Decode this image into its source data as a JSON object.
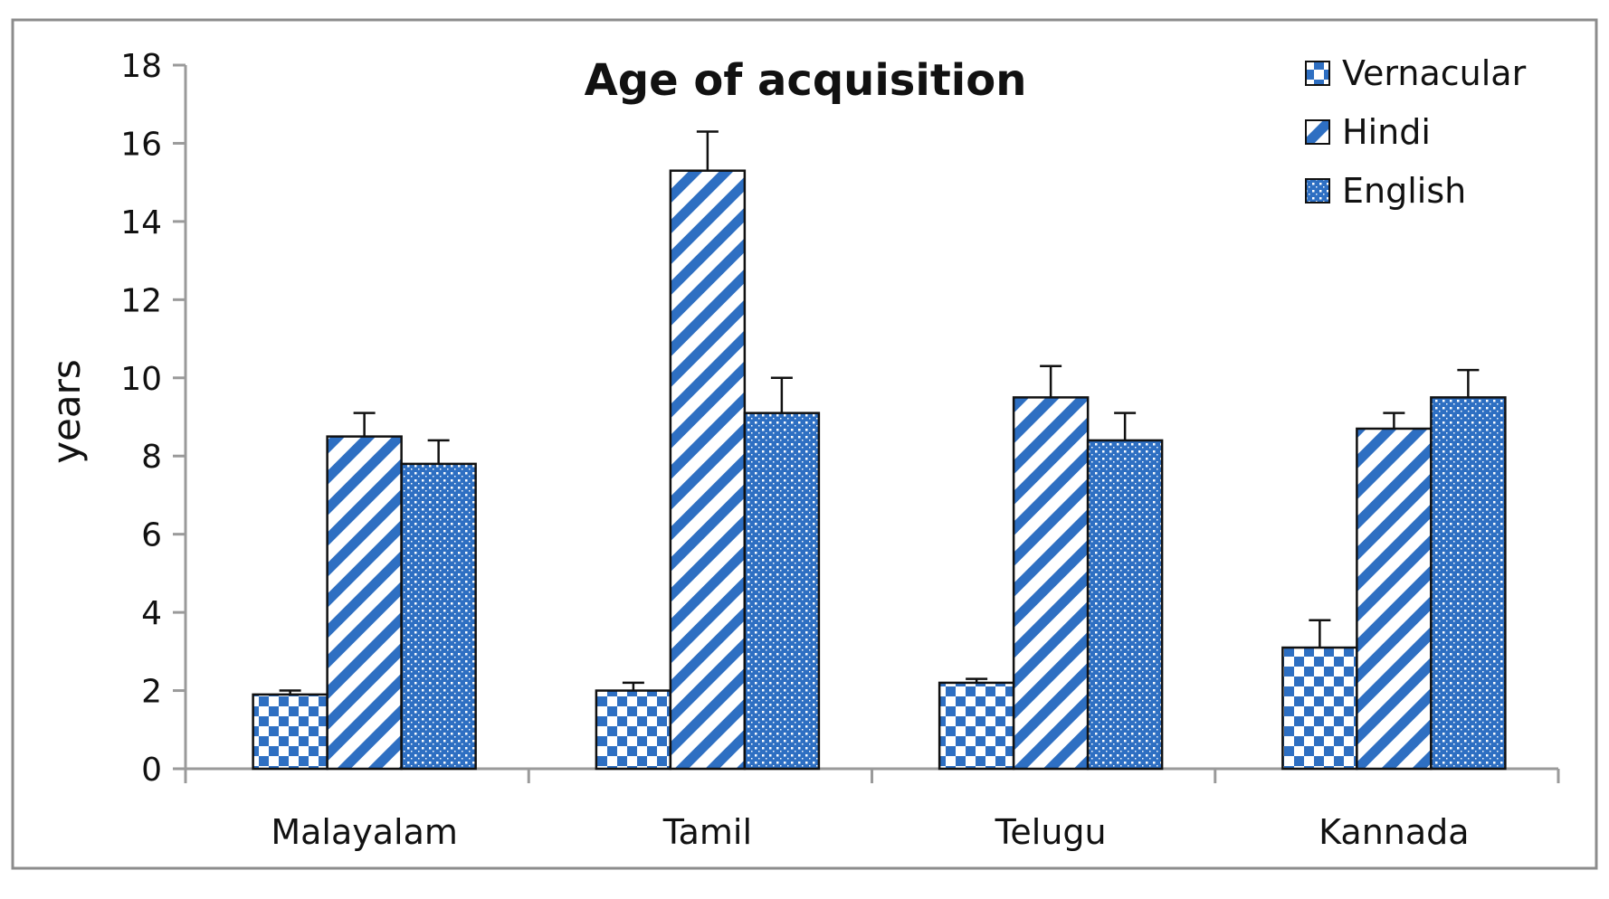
{
  "chart_data": {
    "type": "bar",
    "title": "Age of acquisition",
    "xlabel": "",
    "ylabel": "years",
    "ylim": [
      0,
      18
    ],
    "yticks": [
      0,
      2,
      4,
      6,
      8,
      10,
      12,
      14,
      16,
      18
    ],
    "categories": [
      "Malayalam",
      "Tamil",
      "Telugu",
      "Kannada"
    ],
    "series": [
      {
        "name": "Vernacular",
        "pattern": "checker",
        "values": [
          1.9,
          2.0,
          2.2,
          3.1
        ],
        "errors": [
          0.1,
          0.2,
          0.1,
          0.7
        ]
      },
      {
        "name": "Hindi",
        "pattern": "diagonal-stripes",
        "values": [
          8.5,
          15.3,
          9.5,
          8.7
        ],
        "errors": [
          0.6,
          1.0,
          0.8,
          0.4
        ]
      },
      {
        "name": "English",
        "pattern": "dots",
        "values": [
          7.8,
          9.1,
          8.4,
          9.5
        ],
        "errors": [
          0.6,
          0.9,
          0.7,
          0.7
        ]
      }
    ],
    "grid": false,
    "legend_position": "top-right",
    "colors": {
      "fill": "#2e6fc2",
      "light": "#ffffff",
      "outline": "#111111",
      "axis": "#9a9a9a",
      "frame": "#8c8c8c"
    }
  }
}
